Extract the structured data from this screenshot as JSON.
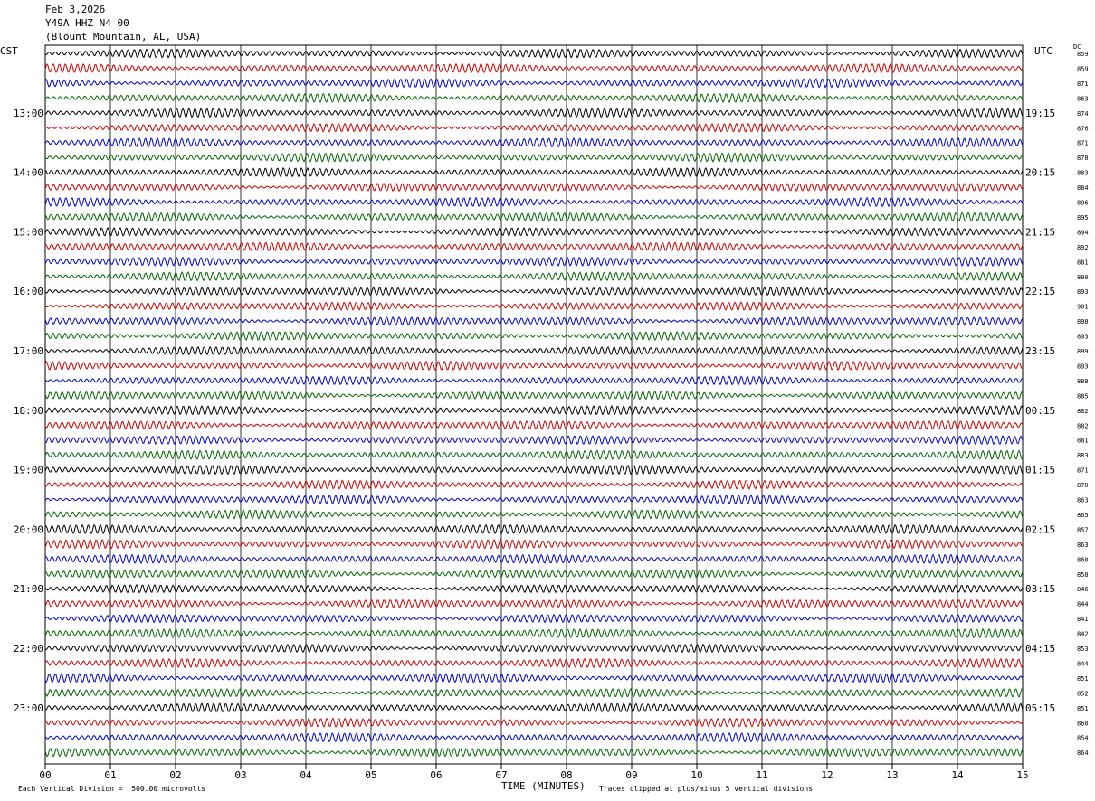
{
  "header": {
    "date": "Feb 3,2026",
    "station": "Y49A HHZ N4 00",
    "location": "(Blount Mountain, AL, USA)"
  },
  "axes": {
    "left_tz": "CST",
    "right_tz": "UTC",
    "dc_label": "DC",
    "xlabel": "TIME (MINUTES)"
  },
  "footer": {
    "scale_note": "Each Vertical Division =  500.00 microvolts",
    "clip_note": "Traces clipped at plus/minus 5 vertical divisions"
  },
  "chart_data": {
    "type": "line",
    "title": "Y49A HHZ N4 00",
    "xlabel": "TIME (MINUTES)",
    "xlim": [
      0,
      15
    ],
    "x_ticks": [
      "00",
      "01",
      "02",
      "03",
      "04",
      "05",
      "06",
      "07",
      "08",
      "09",
      "10",
      "11",
      "12",
      "13",
      "14",
      "15"
    ],
    "trace_colors": [
      "#000000",
      "#cc0000",
      "#0000cc",
      "#006600"
    ],
    "left_hour_labels": [
      "13:00",
      "14:00",
      "15:00",
      "16:00",
      "17:00",
      "18:00",
      "19:00",
      "20:00",
      "21:00",
      "22:00",
      "23:00"
    ],
    "right_hour_labels": [
      "19:15",
      "20:15",
      "21:15",
      "22:15",
      "23:15",
      "00:15",
      "01:15",
      "02:15",
      "03:15",
      "04:15",
      "05:15"
    ],
    "dc_offsets": [
      859,
      859,
      871,
      863,
      874,
      876,
      871,
      878,
      883,
      884,
      896,
      895,
      894,
      892,
      881,
      890,
      893,
      901,
      898,
      893,
      899,
      893,
      888,
      885,
      882,
      882,
      881,
      883,
      871,
      870,
      863,
      865,
      857,
      863,
      860,
      858,
      846,
      844,
      841,
      842,
      853,
      844,
      851,
      852,
      851,
      860,
      854,
      864
    ],
    "grid": true
  }
}
